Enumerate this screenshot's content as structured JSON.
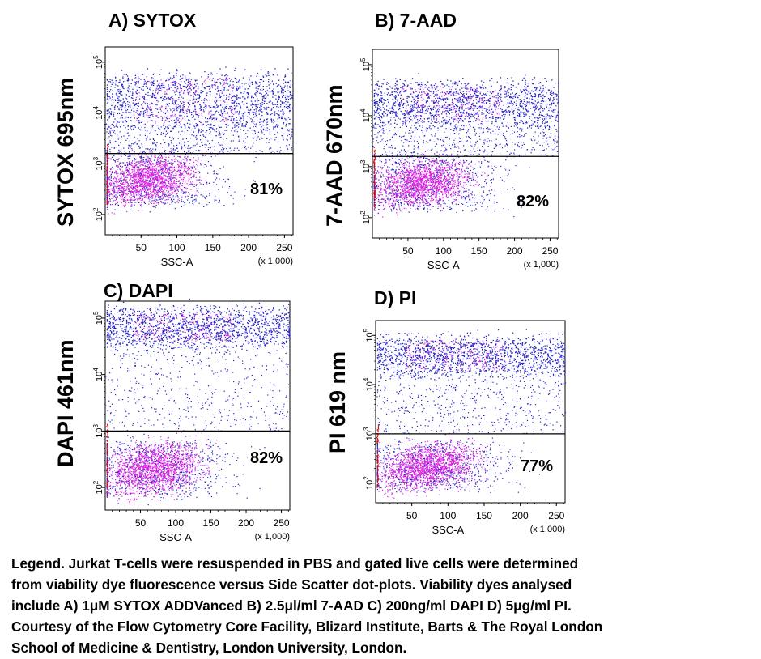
{
  "chart_data": [
    {
      "type": "scatter",
      "title": "A) SYTOX",
      "ylabel": "SYTOX 695nm",
      "xlabel": "SSC-A",
      "x_multiplier_label": "(x 1,000)",
      "x_ticks": [
        "50",
        "100",
        "150",
        "200",
        "250"
      ],
      "y_ticks": [
        "10^2",
        "10^3",
        "10^4",
        "10^5"
      ],
      "xlim": [
        0,
        262
      ],
      "ylim": [
        1.6,
        5.3
      ],
      "y_scale": "log",
      "gate_y": 3.2,
      "gate_percent_label": "81%",
      "series": [
        {
          "color": "#2222cc",
          "x_mean": 135,
          "y_range": [
            3.8,
            4.7
          ]
        },
        {
          "color": "#e020e0",
          "x_mean": 60,
          "y_range": [
            2.2,
            3.2
          ]
        }
      ]
    },
    {
      "type": "scatter",
      "title": "B) 7-AAD",
      "ylabel": "7-AAD 670nm",
      "xlabel": "SSC-A",
      "x_multiplier_label": "(x 1,000)",
      "x_ticks": [
        "50",
        "100",
        "150",
        "200",
        "250"
      ],
      "y_ticks": [
        "10^2",
        "10^3",
        "10^4",
        "10^5"
      ],
      "xlim": [
        0,
        262
      ],
      "ylim": [
        1.6,
        5.3
      ],
      "y_scale": "log",
      "gate_y": 3.2,
      "gate_percent_label": "82%",
      "series": [
        {
          "color": "#2222cc",
          "x_mean": 140,
          "y_range": [
            3.9,
            4.6
          ]
        },
        {
          "color": "#e020e0",
          "x_mean": 70,
          "y_range": [
            2.2,
            3.2
          ]
        }
      ]
    },
    {
      "type": "scatter",
      "title": "C) DAPI",
      "ylabel": "DAPI 461nm",
      "xlabel": "SSC-A",
      "x_multiplier_label": "(x 1,000)",
      "x_ticks": [
        "50",
        "100",
        "150",
        "200",
        "250"
      ],
      "y_ticks": [
        "10^2",
        "10^3",
        "10^4",
        "10^5"
      ],
      "xlim": [
        0,
        262
      ],
      "ylim": [
        1.6,
        5.3
      ],
      "y_scale": "log",
      "gate_y": 3.0,
      "gate_percent_label": "82%",
      "series": [
        {
          "color": "#2222cc",
          "x_mean": 130,
          "y_range": [
            4.6,
            5.1
          ]
        },
        {
          "color": "#e020e0",
          "x_mean": 70,
          "y_range": [
            1.9,
            2.8
          ]
        }
      ]
    },
    {
      "type": "scatter",
      "title": "D) PI",
      "ylabel": "PI 619 nm",
      "xlabel": "SSC-A",
      "x_multiplier_label": "(x 1,000)",
      "x_ticks": [
        "50",
        "100",
        "150",
        "200",
        "250"
      ],
      "y_ticks": [
        "10^2",
        "10^3",
        "10^4",
        "10^5"
      ],
      "xlim": [
        0,
        262
      ],
      "ylim": [
        1.6,
        5.3
      ],
      "y_scale": "log",
      "gate_y": 3.0,
      "gate_percent_label": "77%",
      "series": [
        {
          "color": "#2222cc",
          "x_mean": 140,
          "y_range": [
            4.3,
            4.9
          ]
        },
        {
          "color": "#e020e0",
          "x_mean": 75,
          "y_range": [
            1.9,
            2.8
          ]
        }
      ]
    }
  ],
  "legend_lines": [
    "Legend. Jurkat T-cells were resuspended in PBS  and gated live cells were determined",
    "from viability dye fluorescence versus Side Scatter dot-plots.  Viability dyes analysed",
    "include A) 1μM SYTOX ADDVanced B) 2.5μl/ml 7-AAD C) 200ng/ml DAPI D) 5μg/ml PI.",
    "Courtesy of the Flow Cytometry Core Facility, Blizard Institute, Barts & The Royal London",
    "School of Medicine & Dentistry, London University, London."
  ],
  "colors": {
    "dead_cells": "#2222cc",
    "live_cells": "#e020e0",
    "edge_events": "#dd1111"
  }
}
